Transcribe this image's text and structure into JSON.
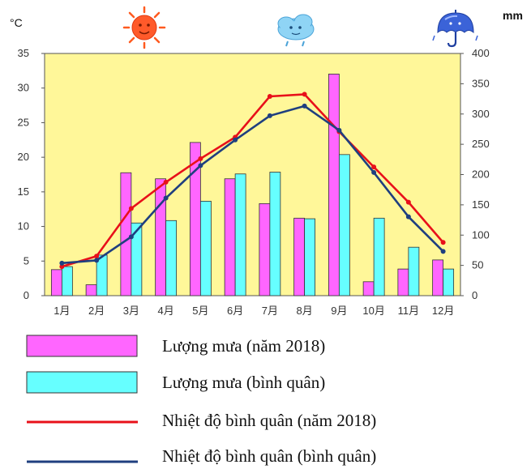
{
  "chart_data": {
    "type": "bar",
    "categories": [
      "1月",
      "2月",
      "3月",
      "4月",
      "5月",
      "6月",
      "7月",
      "8月",
      "9月",
      "10月",
      "11月",
      "12月"
    ],
    "left_axis": {
      "unit": "°C",
      "ylim": [
        0,
        35
      ],
      "ticks": [
        0,
        5,
        10,
        15,
        20,
        25,
        30,
        35
      ]
    },
    "right_axis": {
      "unit": "mm",
      "ylim": [
        0,
        400
      ],
      "ticks": [
        0,
        50,
        100,
        150,
        200,
        250,
        300,
        350,
        400
      ]
    },
    "series": [
      {
        "name": "Lượng mưa (năm 2018)",
        "kind": "bar",
        "axis": "right",
        "color": "#ff66ff",
        "values": [
          43,
          18,
          203,
          193,
          253,
          193,
          152,
          128,
          366,
          23,
          44,
          59
        ]
      },
      {
        "name": "Lượng mưa (bình quân)",
        "kind": "bar",
        "axis": "right",
        "color": "#66ffff",
        "values": [
          48,
          67,
          120,
          124,
          156,
          201,
          204,
          127,
          233,
          128,
          80,
          44
        ]
      },
      {
        "name": "Nhiệt độ bình quân (năm 2018)",
        "kind": "line",
        "axis": "left",
        "color": "#e8101a",
        "values": [
          4.2,
          5.7,
          12.6,
          16.4,
          19.8,
          22.9,
          28.8,
          29.1,
          23.7,
          18.6,
          13.5,
          7.7
        ]
      },
      {
        "name": "Nhiệt độ bình quân (bình quân)",
        "kind": "line",
        "axis": "left",
        "color": "#1f3f7f",
        "values": [
          4.7,
          5.1,
          8.5,
          14.1,
          18.8,
          22.5,
          26.0,
          27.4,
          23.9,
          17.8,
          11.4,
          6.4
        ]
      }
    ],
    "plot_background": "#fff799",
    "legend_position": "bottom",
    "grid": false,
    "icons": [
      "sun-icon",
      "cloud-icon",
      "umbrella-icon"
    ]
  }
}
